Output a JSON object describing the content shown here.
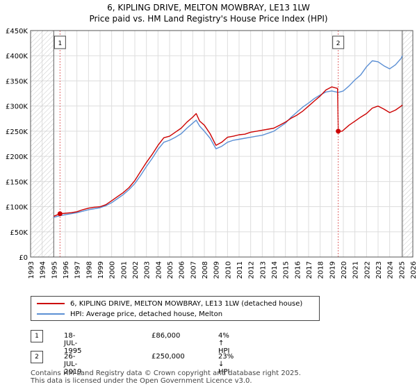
{
  "title": "6, KIPLING DRIVE, MELTON MOWBRAY, LE13 1LW",
  "subtitle": "Price paid vs. HM Land Registry's House Price Index (HPI)",
  "chart_data": {
    "type": "line",
    "title": "6, KIPLING DRIVE, MELTON MOWBRAY, LE13 1LW",
    "subtitle": "Price paid vs. HM Land Registry's House Price Index (HPI)",
    "xlim": [
      1993,
      2026
    ],
    "ylim": [
      0,
      450000
    ],
    "x_ticks": [
      "1993",
      "1994",
      "1995",
      "1996",
      "1997",
      "1998",
      "1999",
      "2000",
      "2001",
      "2002",
      "2003",
      "2004",
      "2005",
      "2006",
      "2007",
      "2008",
      "2009",
      "2010",
      "2011",
      "2012",
      "2013",
      "2014",
      "2015",
      "2016",
      "2017",
      "2018",
      "2019",
      "2020",
      "2021",
      "2022",
      "2023",
      "2024",
      "2025",
      "2026"
    ],
    "y_ticks": [
      {
        "value": 0,
        "label": "£0"
      },
      {
        "value": 50000,
        "label": "£50K"
      },
      {
        "value": 100000,
        "label": "£100K"
      },
      {
        "value": 150000,
        "label": "£150K"
      },
      {
        "value": 200000,
        "label": "£200K"
      },
      {
        "value": 250000,
        "label": "£250K"
      },
      {
        "value": 300000,
        "label": "£300K"
      },
      {
        "value": 350000,
        "label": "£350K"
      },
      {
        "value": 400000,
        "label": "£400K"
      },
      {
        "value": 450000,
        "label": "£450K"
      }
    ],
    "grid": true,
    "hatched_ranges": [
      [
        1993,
        1995.0
      ],
      [
        2025.1,
        2026
      ]
    ],
    "series": [
      {
        "name": "6, KIPLING DRIVE, MELTON MOWBRAY, LE13 1LW (detached house)",
        "color": "#cc0000",
        "points": [
          [
            1995.0,
            81000
          ],
          [
            1995.54,
            86000
          ],
          [
            1996.0,
            87000
          ],
          [
            1996.5,
            88000
          ],
          [
            1997.0,
            90000
          ],
          [
            1997.5,
            94000
          ],
          [
            1998.0,
            97000
          ],
          [
            1998.5,
            99000
          ],
          [
            1999.0,
            100000
          ],
          [
            1999.5,
            104000
          ],
          [
            2000.0,
            112000
          ],
          [
            2000.5,
            120000
          ],
          [
            2001.0,
            128000
          ],
          [
            2001.5,
            138000
          ],
          [
            2002.0,
            152000
          ],
          [
            2002.5,
            170000
          ],
          [
            2003.0,
            188000
          ],
          [
            2003.5,
            204000
          ],
          [
            2004.0,
            222000
          ],
          [
            2004.5,
            237000
          ],
          [
            2005.0,
            240000
          ],
          [
            2005.5,
            248000
          ],
          [
            2006.0,
            256000
          ],
          [
            2006.5,
            268000
          ],
          [
            2007.0,
            278000
          ],
          [
            2007.3,
            285000
          ],
          [
            2007.6,
            270000
          ],
          [
            2008.0,
            262000
          ],
          [
            2008.5,
            245000
          ],
          [
            2009.0,
            222000
          ],
          [
            2009.5,
            228000
          ],
          [
            2010.0,
            238000
          ],
          [
            2010.5,
            240000
          ],
          [
            2011.0,
            243000
          ],
          [
            2011.5,
            244000
          ],
          [
            2012.0,
            248000
          ],
          [
            2012.5,
            250000
          ],
          [
            2013.0,
            252000
          ],
          [
            2013.5,
            254000
          ],
          [
            2014.0,
            256000
          ],
          [
            2014.5,
            262000
          ],
          [
            2015.0,
            268000
          ],
          [
            2015.5,
            276000
          ],
          [
            2016.0,
            282000
          ],
          [
            2016.5,
            290000
          ],
          [
            2017.0,
            300000
          ],
          [
            2017.5,
            310000
          ],
          [
            2018.0,
            320000
          ],
          [
            2018.5,
            332000
          ],
          [
            2019.0,
            338000
          ],
          [
            2019.5,
            335000
          ],
          [
            2019.56,
            250000
          ],
          [
            2019.9,
            250000
          ],
          [
            2020.5,
            262000
          ],
          [
            2021.0,
            270000
          ],
          [
            2021.5,
            278000
          ],
          [
            2022.0,
            285000
          ],
          [
            2022.5,
            296000
          ],
          [
            2023.0,
            300000
          ],
          [
            2023.5,
            294000
          ],
          [
            2024.0,
            287000
          ],
          [
            2024.5,
            292000
          ],
          [
            2025.0,
            300000
          ],
          [
            2025.1,
            302000
          ]
        ]
      },
      {
        "name": "HPI: Average price, detached house, Melton",
        "color": "#5b8fd4",
        "points": [
          [
            1995.0,
            79000
          ],
          [
            1995.54,
            82000
          ],
          [
            1996.0,
            84000
          ],
          [
            1996.5,
            86000
          ],
          [
            1997.0,
            88000
          ],
          [
            1997.5,
            91000
          ],
          [
            1998.0,
            94000
          ],
          [
            1998.5,
            96000
          ],
          [
            1999.0,
            98000
          ],
          [
            1999.5,
            102000
          ],
          [
            2000.0,
            108000
          ],
          [
            2000.5,
            116000
          ],
          [
            2001.0,
            124000
          ],
          [
            2001.5,
            134000
          ],
          [
            2002.0,
            146000
          ],
          [
            2002.5,
            162000
          ],
          [
            2003.0,
            180000
          ],
          [
            2003.5,
            196000
          ],
          [
            2004.0,
            214000
          ],
          [
            2004.5,
            228000
          ],
          [
            2005.0,
            232000
          ],
          [
            2005.5,
            238000
          ],
          [
            2006.0,
            245000
          ],
          [
            2006.5,
            256000
          ],
          [
            2007.0,
            266000
          ],
          [
            2007.3,
            272000
          ],
          [
            2007.6,
            260000
          ],
          [
            2008.0,
            250000
          ],
          [
            2008.5,
            236000
          ],
          [
            2009.0,
            215000
          ],
          [
            2009.5,
            220000
          ],
          [
            2010.0,
            228000
          ],
          [
            2010.5,
            232000
          ],
          [
            2011.0,
            234000
          ],
          [
            2011.5,
            236000
          ],
          [
            2012.0,
            238000
          ],
          [
            2012.5,
            240000
          ],
          [
            2013.0,
            242000
          ],
          [
            2013.5,
            246000
          ],
          [
            2014.0,
            250000
          ],
          [
            2014.5,
            258000
          ],
          [
            2015.0,
            266000
          ],
          [
            2015.5,
            278000
          ],
          [
            2016.0,
            288000
          ],
          [
            2016.5,
            298000
          ],
          [
            2017.0,
            306000
          ],
          [
            2017.5,
            315000
          ],
          [
            2018.0,
            322000
          ],
          [
            2018.5,
            328000
          ],
          [
            2019.0,
            330000
          ],
          [
            2019.56,
            327000
          ],
          [
            2020.0,
            330000
          ],
          [
            2020.5,
            340000
          ],
          [
            2021.0,
            352000
          ],
          [
            2021.5,
            362000
          ],
          [
            2022.0,
            378000
          ],
          [
            2022.5,
            390000
          ],
          [
            2023.0,
            388000
          ],
          [
            2023.5,
            380000
          ],
          [
            2024.0,
            374000
          ],
          [
            2024.5,
            382000
          ],
          [
            2025.0,
            395000
          ],
          [
            2025.1,
            400000
          ]
        ]
      }
    ],
    "annotations": [
      {
        "label": "1",
        "x": 1995.54,
        "y": 86000
      },
      {
        "label": "2",
        "x": 2019.56,
        "y": 250000
      }
    ]
  },
  "legend": {
    "items": [
      {
        "label": "6, KIPLING DRIVE, MELTON MOWBRAY, LE13 1LW (detached house)",
        "color": "#cc0000"
      },
      {
        "label": "HPI: Average price, detached house, Melton",
        "color": "#5b8fd4"
      }
    ]
  },
  "sales": [
    {
      "num": "1",
      "date": "18-JUL-1995",
      "price": "£86,000",
      "hpi": "4% ↑ HPI"
    },
    {
      "num": "2",
      "date": "26-JUL-2019",
      "price": "£250,000",
      "hpi": "23% ↓ HPI"
    }
  ],
  "footer": {
    "line1": "Contains HM Land Registry data © Crown copyright and database right 2025.",
    "line2": "This data is licensed under the Open Government Licence v3.0."
  }
}
